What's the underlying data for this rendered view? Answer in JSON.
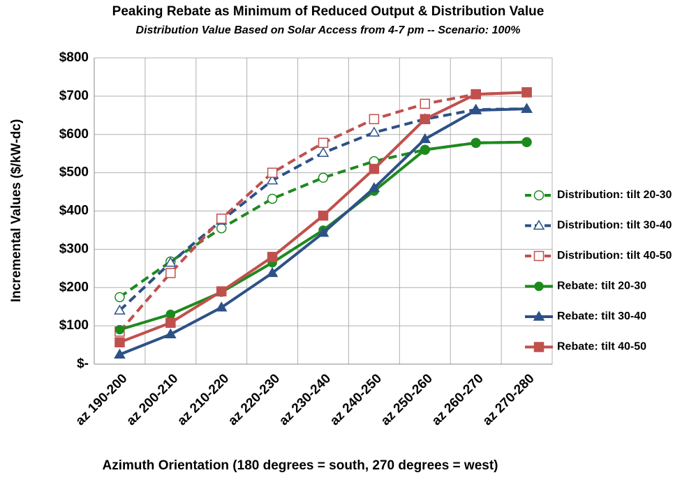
{
  "chart_data": {
    "type": "line",
    "title": "Peaking Rebate as Minimum of Reduced Output & Distribution Value",
    "subtitle": "Distribution Value Based on Solar Access from 4-7 pm -- Scenario: 100%",
    "x_label": "Azimuth Orientation (180 degrees = south, 270 degrees = west)",
    "y_label": "Incremental Values ($/kW-dc)",
    "categories": [
      "az 190-200",
      "az 200-210",
      "az 210-220",
      "az 220-230",
      "az 230-240",
      "az 240-250",
      "az 250-260",
      "az 260-270",
      "az 270-280"
    ],
    "ylim": [
      0,
      800
    ],
    "yticks": [
      {
        "value": 0,
        "label": "$-"
      },
      {
        "value": 100,
        "label": "$100"
      },
      {
        "value": 200,
        "label": "$200"
      },
      {
        "value": 300,
        "label": "$300"
      },
      {
        "value": 400,
        "label": "$400"
      },
      {
        "value": 500,
        "label": "$500"
      },
      {
        "value": 600,
        "label": "$600"
      },
      {
        "value": 700,
        "label": "$700"
      },
      {
        "value": 800,
        "label": "$800"
      }
    ],
    "grid": true,
    "legend": "right",
    "series": [
      {
        "name": "Distribution: tilt 20-30",
        "color": "#1e8a1e",
        "dashed": true,
        "marker": "circle",
        "filled": false,
        "values": [
          175,
          268,
          355,
          432,
          487,
          530,
          560,
          578,
          580
        ]
      },
      {
        "name": "Distribution: tilt 30-40",
        "color": "#2d5187",
        "dashed": true,
        "marker": "triangle",
        "filled": false,
        "values": [
          140,
          265,
          375,
          480,
          552,
          605,
          640,
          665,
          667
        ]
      },
      {
        "name": "Distribution: tilt 40-50",
        "color": "#c0504d",
        "dashed": true,
        "marker": "square",
        "filled": false,
        "values": [
          85,
          238,
          380,
          500,
          578,
          640,
          680,
          705,
          710
        ]
      },
      {
        "name": "Rebate: tilt 20-30",
        "color": "#1e8a1e",
        "dashed": false,
        "marker": "circle",
        "filled": true,
        "values": [
          90,
          130,
          188,
          265,
          350,
          452,
          560,
          578,
          580
        ]
      },
      {
        "name": "Rebate: tilt 30-40",
        "color": "#2d5187",
        "dashed": false,
        "marker": "triangle",
        "filled": true,
        "values": [
          25,
          78,
          148,
          238,
          343,
          460,
          588,
          663,
          667
        ]
      },
      {
        "name": "Rebate: tilt 40-50",
        "color": "#c0504d",
        "dashed": false,
        "marker": "square",
        "filled": true,
        "values": [
          57,
          108,
          190,
          280,
          388,
          510,
          640,
          705,
          710
        ]
      }
    ]
  }
}
